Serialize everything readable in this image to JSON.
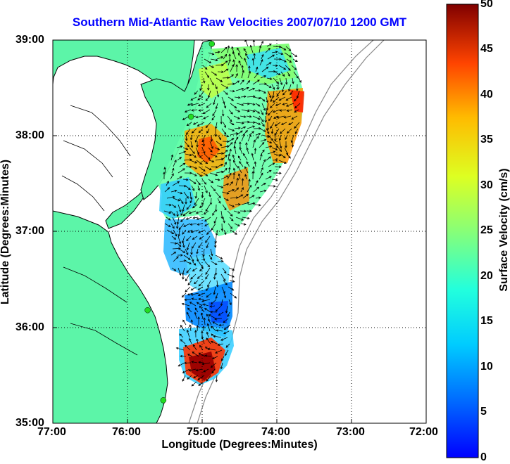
{
  "title": "Southern Mid-Atlantic Raw Velocities 2007/07/10 1200 GMT",
  "xlabel": "Longitude (Degrees:Minutes)",
  "ylabel": "Latitude (Degrees:Minutes)",
  "colorbar_label": "Surface Velocity (cm/s)",
  "map": {
    "lon_range": [
      -77,
      -72
    ],
    "lat_range": [
      35,
      39
    ],
    "x_ticks": [
      "77:00",
      "76:00",
      "75:00",
      "74:00",
      "73:00",
      "72:00"
    ],
    "y_ticks": [
      "39:00",
      "38:00",
      "37:00",
      "36:00",
      "35:00"
    ],
    "grid": "dotted",
    "land_color": "#5cf5a8",
    "water_color": "#ffffff",
    "station_color": "#22dd22",
    "stations": [
      {
        "lon": -74.87,
        "lat": 38.96
      },
      {
        "lon": -75.15,
        "lat": 38.2
      },
      {
        "lon": -75.73,
        "lat": 36.18
      },
      {
        "lon": -75.52,
        "lat": 35.24
      }
    ]
  },
  "colorbar": {
    "min": 0,
    "max": 50,
    "ticks": [
      "50",
      "45",
      "40",
      "35",
      "30",
      "25",
      "20",
      "15",
      "10",
      "5",
      "0"
    ],
    "colormap": "jet"
  }
}
